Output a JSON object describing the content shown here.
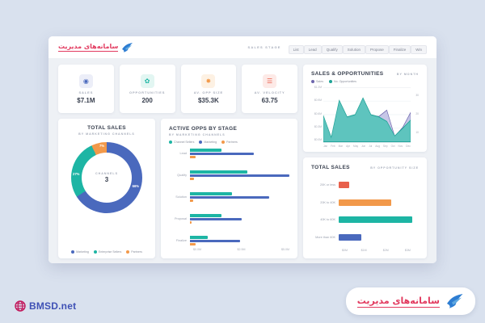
{
  "brand": {
    "logo_text": "سامانه‌های مدیریت",
    "footer_site": "BMSD.net",
    "logo_color": "#e23a5f",
    "bird_color": "#2d7dd2",
    "footer_text_color": "#3f51b5"
  },
  "topbar": {
    "stage_label": "SALES STAGE",
    "stages": [
      "List",
      "Lead",
      "Qualify",
      "Solution",
      "Propose",
      "Finalize",
      "Win"
    ]
  },
  "kpis": [
    {
      "label": "SALES",
      "value": "$7.1M",
      "icon": "coin-icon",
      "glyph": "◉",
      "color": "#4a69bd",
      "bg": "#eceef8"
    },
    {
      "label": "OPPORTUNITIES",
      "value": "200",
      "icon": "gear-icon",
      "glyph": "✿",
      "color": "#1db5a4",
      "bg": "#e2f6f2"
    },
    {
      "label": "AV. OPP SIZE",
      "value": "$35.3K",
      "icon": "sun-icon",
      "glyph": "✸",
      "color": "#f2994a",
      "bg": "#fdf1e3"
    },
    {
      "label": "AV. VELOCITY",
      "value": "63.75",
      "icon": "meter-icon",
      "glyph": "☰",
      "color": "#e8604c",
      "bg": "#fdeae7"
    }
  ],
  "chart_data": [
    {
      "id": "total_sales_channels",
      "type": "pie",
      "title": "TOTAL SALES",
      "subtitle": "BY MARKETING CHANNELS",
      "center_label": "CHANNELS",
      "center_value": "3",
      "slices": [
        {
          "label": "Marketing",
          "pct": 66,
          "color": "#4a69bd"
        },
        {
          "label": "Enterprise Sellers",
          "pct": 27,
          "color": "#1db5a4"
        },
        {
          "label": "Partners",
          "pct": 7,
          "color": "#f2994a"
        }
      ],
      "slice_value_labels": [
        "66%",
        "27%",
        "7%"
      ],
      "legend_position": "bottom"
    },
    {
      "id": "active_opps_by_stage",
      "type": "bar",
      "title": "ACTIVE OPPS BY STAGE",
      "subtitle": "BY MARKETING CHANNELS",
      "categories": [
        "Lead",
        "Qualify",
        "Solution",
        "Proposal",
        "Finalize"
      ],
      "series": [
        {
          "name": "Channel Sellers",
          "color": "#1db5a4",
          "values": [
            1.6,
            2.9,
            2.1,
            1.6,
            0.9
          ]
        },
        {
          "name": "Marketing",
          "color": "#4a69bd",
          "values": [
            3.2,
            5.0,
            4.0,
            2.6,
            2.5
          ]
        },
        {
          "name": "Partners",
          "color": "#f2994a",
          "values": [
            0.3,
            0.2,
            0.15,
            0.1,
            0.3
          ]
        }
      ],
      "xlim": [
        0,
        5
      ],
      "x_ticks": [
        {
          "label": "$0.0M",
          "value": 0
        },
        {
          "label": "$2.5M",
          "value": 2.5
        },
        {
          "label": "$5.0M",
          "value": 5
        }
      ],
      "xlabel": "",
      "ylabel": "",
      "grid": false,
      "legend_position": "top"
    },
    {
      "id": "sales_and_opportunities",
      "type": "area",
      "title": "SALES & OPPORTUNITIES",
      "subtitle": "BY MONTH",
      "x": [
        "Jan",
        "Feb",
        "Mar",
        "Apr",
        "May",
        "Jun",
        "Jul",
        "Aug",
        "Sep",
        "Oct",
        "Nov",
        "Dec"
      ],
      "series": [
        {
          "name": "Sales",
          "color": "#6e66ad",
          "fill": "#c3c3e6",
          "values": [
            0.52,
            0.06,
            0.88,
            0.53,
            0.58,
            0.94,
            0.58,
            0.56,
            0.7,
            0.12,
            0.32,
            0.65
          ]
        },
        {
          "name": "No. Opportunities",
          "color": "#1fa396",
          "fill": "#59c4bc",
          "values": [
            0.58,
            0.1,
            0.92,
            0.55,
            0.6,
            0.97,
            0.6,
            0.55,
            0.45,
            0.13,
            0.3,
            0.48
          ]
        }
      ],
      "ylim": [
        0,
        1.2
      ],
      "y_ticks_left": [
        "$1.2M",
        "$0.9M",
        "$0.6M",
        "$0.3M",
        "$0.0M"
      ],
      "y_ticks_right": [
        "30",
        "20",
        "10"
      ],
      "grid": true,
      "legend_position": "top"
    },
    {
      "id": "total_sales_opp_size",
      "type": "bar",
      "title": "TOTAL SALES",
      "subtitle": "BY OPPORTUNITY SIZE",
      "categories": [
        "20K or less",
        "20K to 40K",
        "40K to 60K",
        "More than 60K"
      ],
      "values": [
        0.45,
        2.3,
        3.2,
        1.0
      ],
      "colors": [
        "#e8604c",
        "#f2994a",
        "#1db5a4",
        "#4a69bd"
      ],
      "xlim": [
        0,
        3.5
      ],
      "x_ticks": [
        {
          "label": "$0M",
          "value": 0
        },
        {
          "label": "$1M",
          "value": 1
        },
        {
          "label": "$2M",
          "value": 2
        },
        {
          "label": "$3M",
          "value": 3
        }
      ],
      "xlabel": "",
      "ylabel": "",
      "grid": false
    }
  ]
}
